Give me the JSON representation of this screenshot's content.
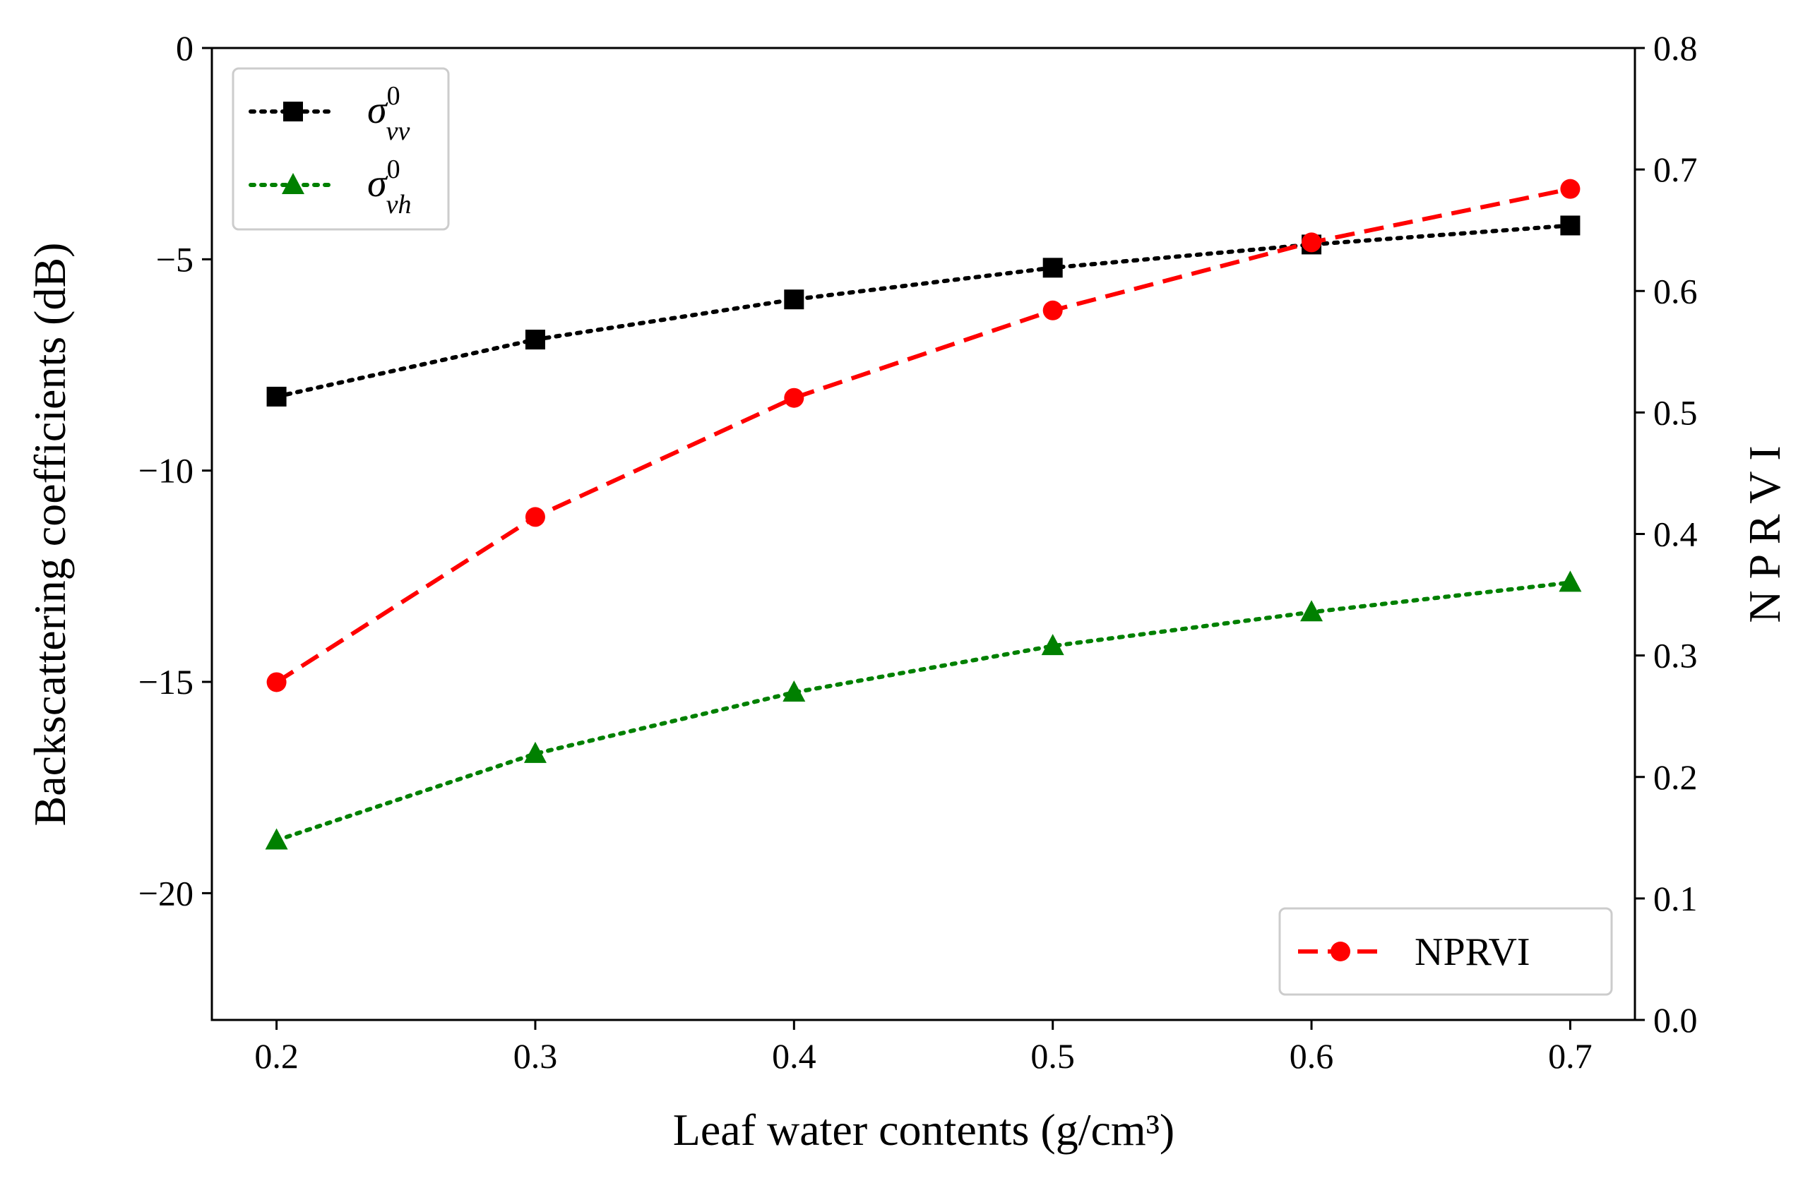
{
  "chart_data": {
    "type": "line",
    "x": [
      0.2,
      0.3,
      0.4,
      0.5,
      0.6,
      0.7
    ],
    "xlabel": "Leaf water contents (g/cm³)",
    "xlim": [
      0.175,
      0.725
    ],
    "xticks": [
      "0.2",
      "0.3",
      "0.4",
      "0.5",
      "0.6",
      "0.7"
    ],
    "ylabel": "Backscattering coefficients (dB)",
    "ylim": [
      -23,
      0
    ],
    "yticks": [
      {
        "value": 0,
        "label": "0"
      },
      {
        "value": -5,
        "label": "−5"
      },
      {
        "value": -10,
        "label": "−10"
      },
      {
        "value": -15,
        "label": "−15"
      },
      {
        "value": -20,
        "label": "−20"
      }
    ],
    "y2label": "N P R V I",
    "y2lim": [
      0.0,
      0.8
    ],
    "y2ticks": [
      "0.0",
      "0.1",
      "0.2",
      "0.3",
      "0.4",
      "0.5",
      "0.6",
      "0.7",
      "0.8"
    ],
    "grid": false,
    "series": [
      {
        "name": "σ⁰vv",
        "legend_base": "σ",
        "legend_sup": "0",
        "legend_sub": "vv",
        "axis": "left",
        "values": [
          -8.25,
          -6.9,
          -5.95,
          -5.2,
          -4.65,
          -4.2
        ],
        "color": "#000000",
        "linestyle": "dotted",
        "marker": "square"
      },
      {
        "name": "σ⁰vh",
        "legend_base": "σ",
        "legend_sup": "0",
        "legend_sub": "vh",
        "axis": "left",
        "values": [
          -18.75,
          -16.7,
          -15.25,
          -14.15,
          -13.35,
          -12.65
        ],
        "color": "#008000",
        "linestyle": "dotted",
        "marker": "triangle"
      },
      {
        "name": "NPRVI",
        "axis": "right",
        "values": [
          0.278,
          0.414,
          0.512,
          0.584,
          0.64,
          0.684
        ],
        "color": "#ff0000",
        "linestyle": "dashed",
        "marker": "circle"
      }
    ],
    "legends": [
      {
        "placement": "top-left",
        "series": [
          "σ⁰vv",
          "σ⁰vh"
        ]
      },
      {
        "placement": "bottom-right",
        "series": [
          "NPRVI"
        ]
      }
    ]
  }
}
